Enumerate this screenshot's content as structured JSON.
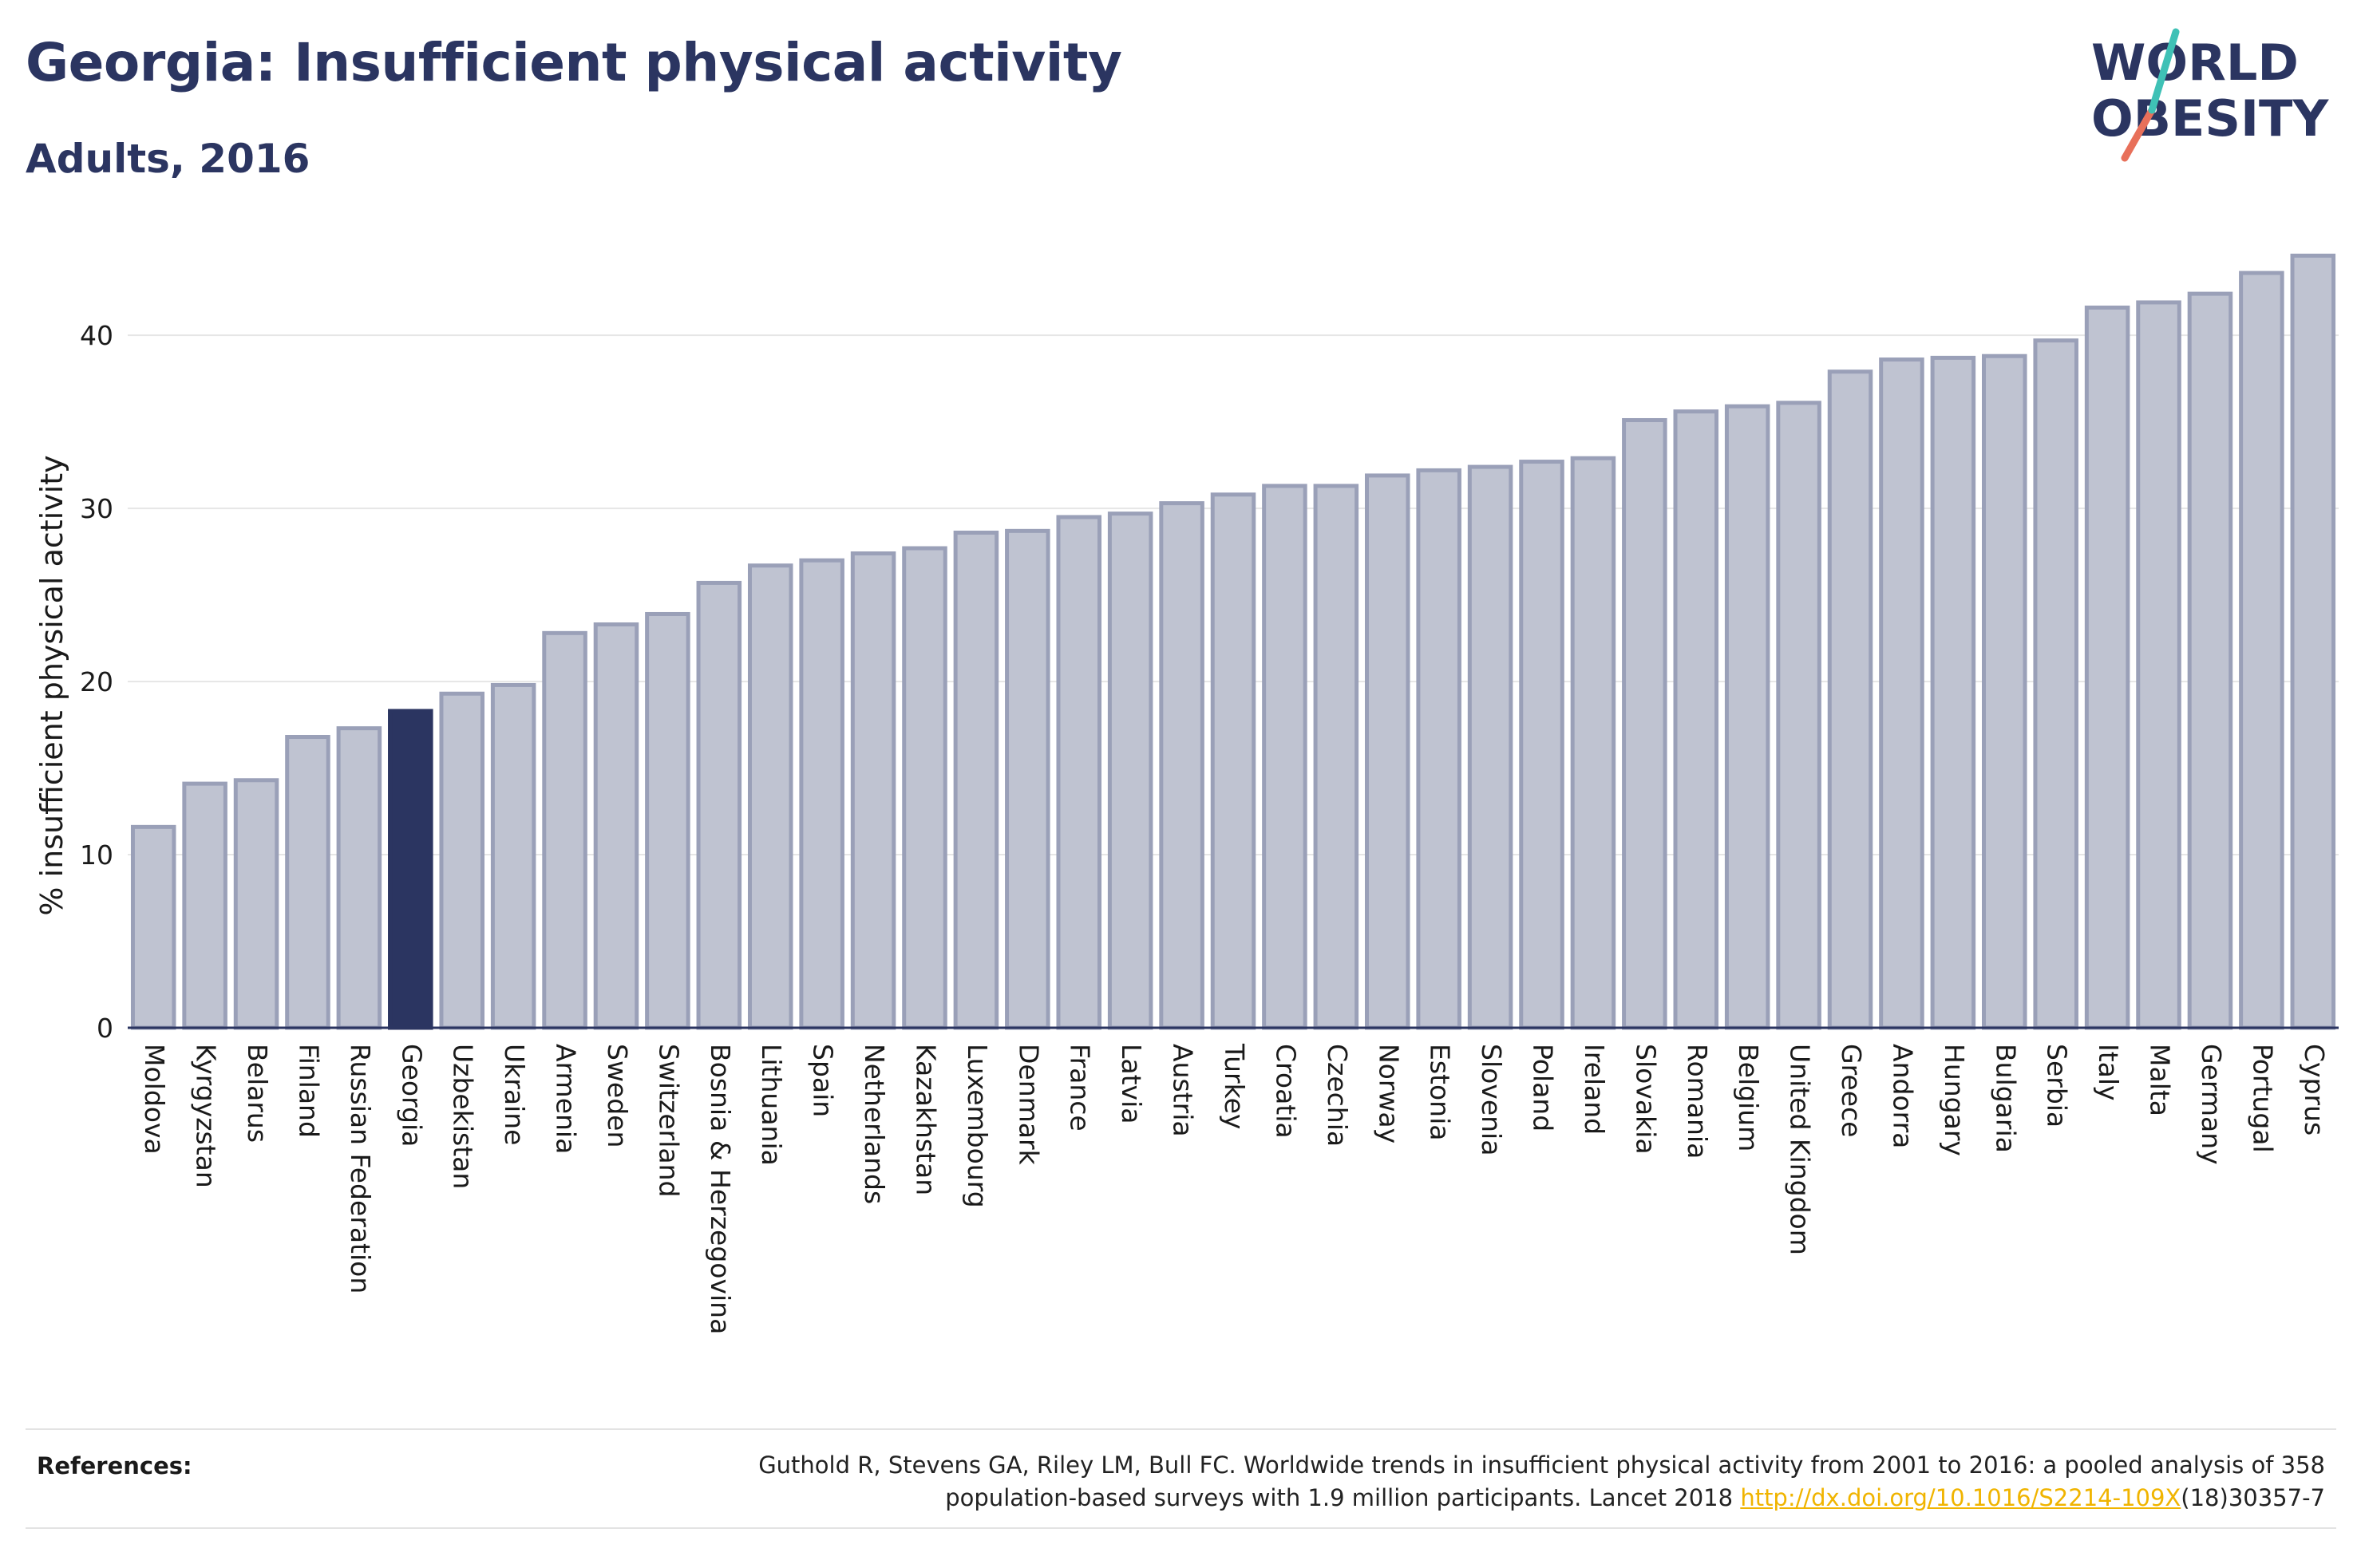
{
  "header": {
    "title": "Georgia: Insufficient physical activity",
    "subtitle": "Adults, 2016"
  },
  "logo": {
    "line1": "WORLD",
    "line2": "OBESITY"
  },
  "colors": {
    "bar": "#bfc3d1",
    "bar_stroke": "#9aa0b8",
    "highlight": "#2b3561",
    "title": "#2b3561",
    "link": "#f0b400"
  },
  "chart_data": {
    "type": "bar",
    "ylabel": "% insufficient physical activity",
    "xlabel": "",
    "ylim": [
      0,
      46
    ],
    "yticks": [
      0,
      10,
      20,
      30,
      40
    ],
    "grid": true,
    "highlight": "Georgia",
    "categories": [
      "Moldova",
      "Kyrgyzstan",
      "Belarus",
      "Finland",
      "Russian Federation",
      "Georgia",
      "Uzbekistan",
      "Ukraine",
      "Armenia",
      "Sweden",
      "Switzerland",
      "Bosnia & Herzegovina",
      "Lithuania",
      "Spain",
      "Netherlands",
      "Kazakhstan",
      "Luxembourg",
      "Denmark",
      "France",
      "Latvia",
      "Austria",
      "Turkey",
      "Croatia",
      "Czechia",
      "Norway",
      "Estonia",
      "Slovenia",
      "Poland",
      "Ireland",
      "Slovakia",
      "Romania",
      "Belgium",
      "United Kingdom",
      "Greece",
      "Andorra",
      "Hungary",
      "Bulgaria",
      "Serbia",
      "Italy",
      "Malta",
      "Germany",
      "Portugal",
      "Cyprus"
    ],
    "values": [
      11.6,
      14.1,
      14.3,
      16.8,
      17.3,
      18.3,
      19.3,
      19.8,
      22.8,
      23.3,
      23.9,
      25.7,
      26.7,
      27.0,
      27.4,
      27.7,
      28.6,
      28.7,
      29.5,
      29.7,
      30.3,
      30.8,
      31.3,
      31.3,
      31.9,
      32.2,
      32.4,
      32.7,
      32.9,
      35.1,
      35.6,
      35.9,
      36.1,
      37.9,
      38.6,
      38.7,
      38.8,
      39.7,
      41.6,
      41.9,
      42.4,
      43.6,
      44.6
    ]
  },
  "references": {
    "label": "References:",
    "text_line1": "Guthold R, Stevens GA, Riley LM, Bull FC. Worldwide trends in insufficient physical activity from 2001 to 2016: a pooled analysis of 358",
    "text_line2_prefix": "population-based surveys with 1.9 million participants. Lancet 2018 ",
    "link": "http://dx.doi.org/10.1016/S2214-109X",
    "text_line2_suffix": "(18)30357-7"
  }
}
